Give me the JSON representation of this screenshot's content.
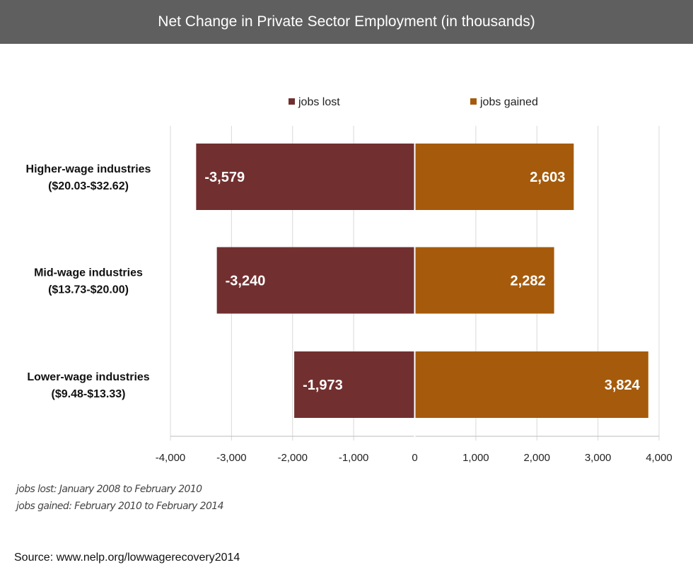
{
  "title": "Net Change in Private Sector Employment (in thousands)",
  "chart_data": {
    "type": "bar",
    "orientation": "horizontal",
    "categories": [
      [
        "Higher-wage industries",
        "($20.03-$32.62)"
      ],
      [
        "Mid-wage industries",
        "($13.73-$20.00)"
      ],
      [
        "Lower-wage industries",
        "($9.48-$13.33)"
      ]
    ],
    "series": [
      {
        "name": "jobs lost",
        "values": [
          -3579,
          -3240,
          -1973
        ],
        "labels": [
          "-3,579",
          "-3,240",
          "-1,973"
        ],
        "color": "#722f2f"
      },
      {
        "name": "jobs gained",
        "values": [
          2603,
          2282,
          3824
        ],
        "labels": [
          "2,603",
          "2,282",
          "3,824"
        ],
        "color": "#a55b0b"
      }
    ],
    "xlim": [
      -4000,
      4000
    ],
    "xticks": [
      -4000,
      -3000,
      -2000,
      -1000,
      0,
      1000,
      2000,
      3000,
      4000
    ],
    "xtick_labels": [
      "-4,000",
      "-3,000",
      "-2,000",
      "-1,000",
      "0",
      "1,000",
      "2,000",
      "3,000",
      "4,000"
    ],
    "grid": true,
    "legend_position": "top"
  },
  "notes": [
    "jobs lost: January 2008 to February 2010",
    "jobs gained: February 2010 to February 2014"
  ],
  "source": "Source: www.nelp.org/lowwagerecovery2014"
}
